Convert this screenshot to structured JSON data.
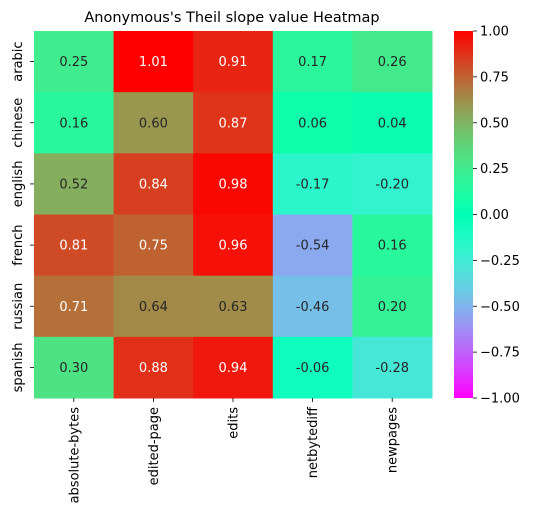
{
  "chart_data": {
    "type": "heatmap",
    "title": "Anonymous's Theil slope value Heatmap",
    "xlabel": "",
    "ylabel": "",
    "columns": [
      "absolute-bytes",
      "edited-page",
      "edits",
      "netbytediff",
      "newpages"
    ],
    "rows": [
      "arabic",
      "chinese",
      "english",
      "french",
      "russian",
      "spanish"
    ],
    "values": [
      [
        0.25,
        1.01,
        0.91,
        0.17,
        0.26
      ],
      [
        0.16,
        0.6,
        0.87,
        0.06,
        0.04
      ],
      [
        0.52,
        0.84,
        0.98,
        -0.17,
        -0.2
      ],
      [
        0.81,
        0.75,
        0.96,
        -0.54,
        0.16
      ],
      [
        0.71,
        0.64,
        0.63,
        -0.46,
        0.2
      ],
      [
        0.3,
        0.88,
        0.94,
        -0.06,
        -0.28
      ]
    ],
    "value_labels": [
      [
        "0.25",
        "1.01",
        "0.91",
        "0.17",
        "0.26"
      ],
      [
        "0.16",
        "0.60",
        "0.87",
        "0.06",
        "0.04"
      ],
      [
        "0.52",
        "0.84",
        "0.98",
        "-0.17",
        "-0.20"
      ],
      [
        "0.81",
        "0.75",
        "0.96",
        "-0.54",
        "0.16"
      ],
      [
        "0.71",
        "0.64",
        "0.63",
        "-0.46",
        "0.20"
      ],
      [
        "0.30",
        "0.88",
        "0.94",
        "-0.06",
        "-0.28"
      ]
    ],
    "colormap": "rainbow",
    "vmin": -1.0,
    "vmax": 1.0,
    "colorbar_ticks": [
      1.0,
      0.75,
      0.5,
      0.25,
      0.0,
      -0.25,
      -0.5,
      -0.75,
      -1.0
    ],
    "colorbar_tick_labels": [
      "1.00",
      "0.75",
      "0.50",
      "0.25",
      "0.00",
      "−0.25",
      "−0.50",
      "−0.75",
      "−1.00"
    ],
    "colorbar_position": "right"
  }
}
